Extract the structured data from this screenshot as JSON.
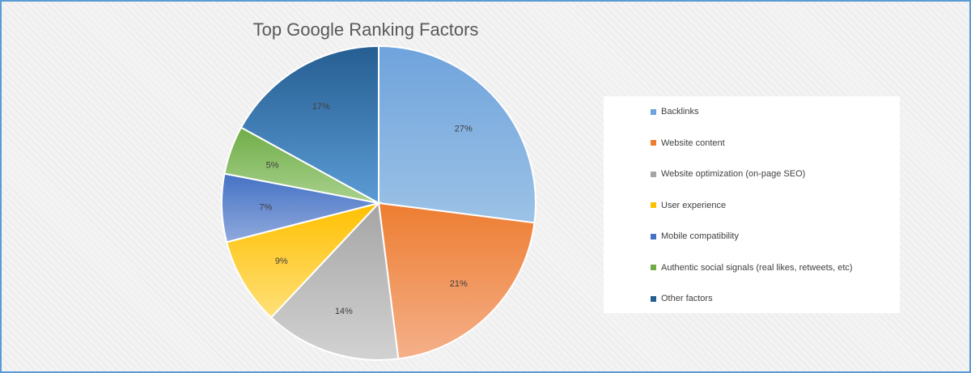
{
  "chart_data": {
    "type": "pie",
    "title": "Top Google Ranking Factors",
    "legend_position": "right",
    "slices": [
      {
        "name": "Backlinks",
        "value": 27,
        "label": "27%",
        "color": "#6fa3dc",
        "color_light": "#9cc2e6"
      },
      {
        "name": "Website content",
        "value": 21,
        "label": "21%",
        "color": "#ed7d31",
        "color_light": "#f5b08a"
      },
      {
        "name": "Website optimization (on-page SEO)",
        "value": 14,
        "label": "14%",
        "color": "#a5a5a5",
        "color_light": "#d2d2d2"
      },
      {
        "name": "User experience",
        "value": 9,
        "label": "9%",
        "color": "#ffc000",
        "color_light": "#ffe07a"
      },
      {
        "name": "Mobile compatibility",
        "value": 7,
        "label": "7%",
        "color": "#4472c4",
        "color_light": "#90a9dd"
      },
      {
        "name": "Authentic social signals (real likes, retweets, etc)",
        "value": 5,
        "label": "5%",
        "color": "#70ad47",
        "color_light": "#a9d18e"
      },
      {
        "name": "Other factors",
        "value": 17,
        "label": "17%",
        "color": "#255e91",
        "color_light": "#5b9bd5"
      }
    ]
  }
}
